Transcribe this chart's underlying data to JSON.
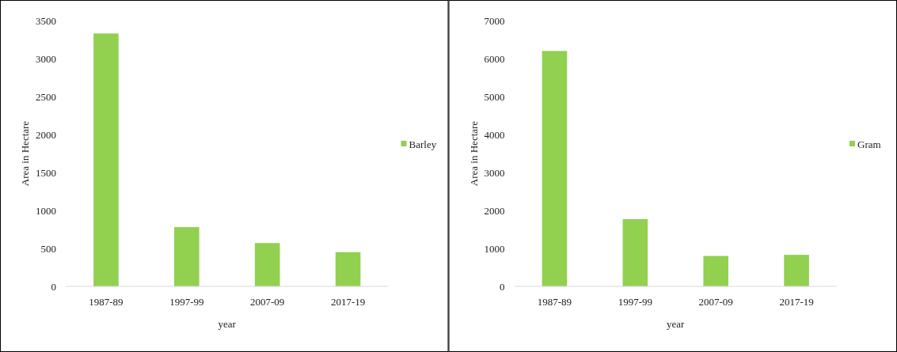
{
  "chart_data": [
    {
      "type": "bar",
      "xlabel": "year",
      "ylabel": "Area in Hectare",
      "categories": [
        "1987-89",
        "1997-99",
        "2007-09",
        "2017-19"
      ],
      "series": [
        {
          "name": "Barley",
          "color": "#92d050",
          "values": [
            3330,
            780,
            570,
            450
          ]
        }
      ],
      "ylim": [
        0,
        3500
      ],
      "yticks": [
        0,
        500,
        1000,
        1500,
        2000,
        2500,
        3000,
        3500
      ],
      "legend": "right",
      "grid": false
    },
    {
      "type": "bar",
      "xlabel": "year",
      "ylabel": "Area in Hectare",
      "categories": [
        "1987-89",
        "1997-99",
        "2007-09",
        "2017-19"
      ],
      "series": [
        {
          "name": "Gram",
          "color": "#92d050",
          "values": [
            6200,
            1770,
            800,
            830
          ]
        }
      ],
      "ylim": [
        0,
        7000
      ],
      "yticks": [
        0,
        1000,
        2000,
        3000,
        4000,
        5000,
        6000,
        7000
      ],
      "legend": "right",
      "grid": false
    }
  ]
}
